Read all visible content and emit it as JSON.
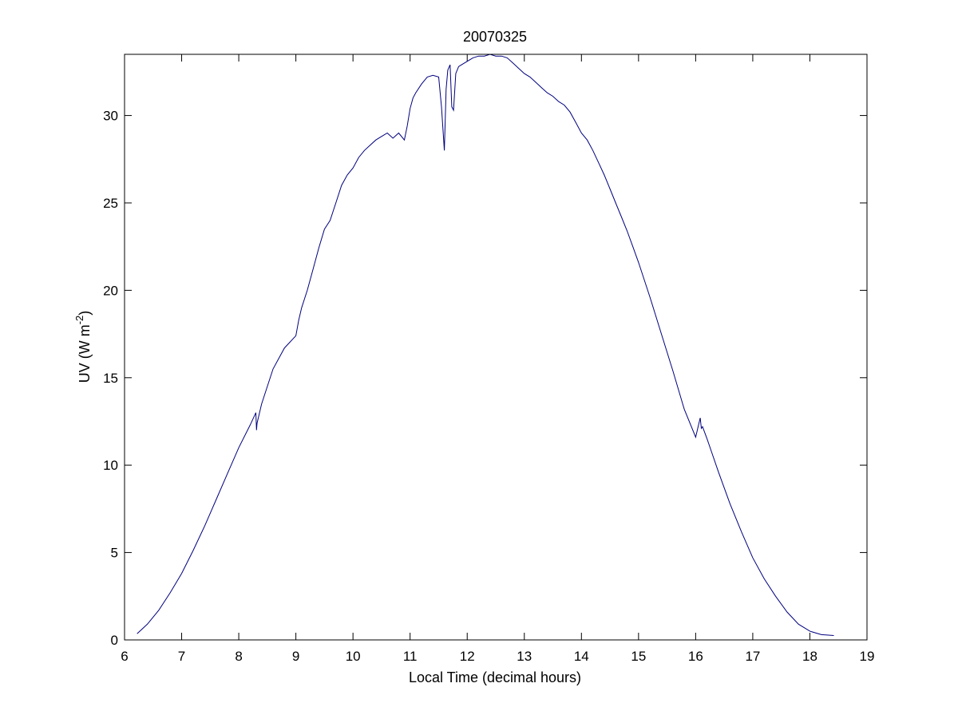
{
  "chart_data": {
    "type": "line",
    "title": "20070325",
    "xlabel": "Local Time (decimal hours)",
    "ylabel_main": "UV (W m",
    "ylabel_sup": "-2",
    "ylabel_close": ")",
    "xlim": [
      6,
      19
    ],
    "ylim": [
      0,
      33.5
    ],
    "xticks": [
      6,
      7,
      8,
      9,
      10,
      11,
      12,
      13,
      14,
      15,
      16,
      17,
      18,
      19
    ],
    "yticks": [
      0,
      5,
      10,
      15,
      20,
      25,
      30
    ],
    "grid": false,
    "line_color": "#00007f",
    "series": [
      {
        "x": [
          6.22,
          6.4,
          6.6,
          6.8,
          7.0,
          7.2,
          7.4,
          7.6,
          7.8,
          8.0,
          8.2,
          8.3,
          8.31,
          8.32,
          8.4,
          8.6,
          8.8,
          9.0,
          9.05,
          9.1,
          9.2,
          9.3,
          9.4,
          9.5,
          9.6,
          9.7,
          9.8,
          9.9,
          10.0,
          10.1,
          10.2,
          10.3,
          10.4,
          10.5,
          10.6,
          10.7,
          10.8,
          10.9,
          10.95,
          11.0,
          11.05,
          11.1,
          11.2,
          11.3,
          11.4,
          11.5,
          11.55,
          11.6,
          11.63,
          11.66,
          11.7,
          11.73,
          11.76,
          11.8,
          11.85,
          11.9,
          12.0,
          12.1,
          12.2,
          12.3,
          12.4,
          12.5,
          12.6,
          12.7,
          12.8,
          12.9,
          13.0,
          13.1,
          13.2,
          13.3,
          13.4,
          13.5,
          13.6,
          13.7,
          13.8,
          13.9,
          14.0,
          14.1,
          14.2,
          14.3,
          14.4,
          14.5,
          14.6,
          14.7,
          14.8,
          14.9,
          15.0,
          15.2,
          15.4,
          15.6,
          15.8,
          16.0,
          16.05,
          16.08,
          16.1,
          16.12,
          16.2,
          16.4,
          16.6,
          16.8,
          17.0,
          17.2,
          17.4,
          17.6,
          17.8,
          18.0,
          18.2,
          18.42
        ],
        "y": [
          0.35,
          0.9,
          1.7,
          2.7,
          3.8,
          5.1,
          6.5,
          8.0,
          9.5,
          11.0,
          12.3,
          13.0,
          12.0,
          12.4,
          13.5,
          15.5,
          16.7,
          17.4,
          18.3,
          19.0,
          20.0,
          21.2,
          22.4,
          23.5,
          24.0,
          25.0,
          26.0,
          26.6,
          27.0,
          27.6,
          28.0,
          28.3,
          28.6,
          28.8,
          29.0,
          28.7,
          29.0,
          28.6,
          29.4,
          30.4,
          31.0,
          31.3,
          31.8,
          32.2,
          32.3,
          32.2,
          30.5,
          28.0,
          31.5,
          32.6,
          32.9,
          30.5,
          30.3,
          32.4,
          32.8,
          32.9,
          33.1,
          33.3,
          33.4,
          33.4,
          33.5,
          33.4,
          33.4,
          33.3,
          33.0,
          32.7,
          32.4,
          32.2,
          31.9,
          31.6,
          31.3,
          31.1,
          30.8,
          30.6,
          30.2,
          29.6,
          29.0,
          28.6,
          28.0,
          27.3,
          26.6,
          25.8,
          25.0,
          24.2,
          23.4,
          22.5,
          21.6,
          19.6,
          17.5,
          15.4,
          13.2,
          11.6,
          12.3,
          12.7,
          12.1,
          12.2,
          11.5,
          9.6,
          7.8,
          6.2,
          4.7,
          3.5,
          2.5,
          1.6,
          0.9,
          0.5,
          0.3,
          0.25
        ]
      }
    ]
  }
}
